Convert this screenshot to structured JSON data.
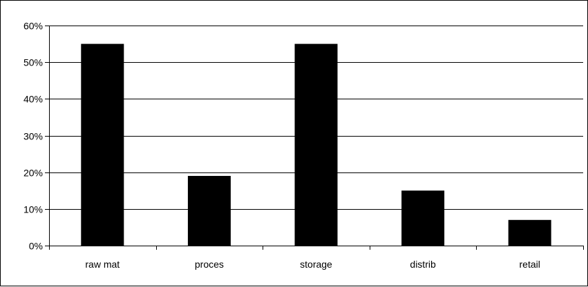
{
  "chart_data": {
    "type": "bar",
    "title": "",
    "xlabel": "",
    "ylabel": "",
    "categories": [
      "raw mat",
      "proces",
      "storage",
      "distrib",
      "retail"
    ],
    "values": [
      0.55,
      0.19,
      0.55,
      0.15,
      0.07
    ],
    "ylim": [
      0,
      0.6
    ],
    "yticks": [
      0,
      0.1,
      0.2,
      0.3,
      0.4,
      0.5,
      0.6
    ],
    "ytick_labels": [
      "0%",
      "10%",
      "20%",
      "30%",
      "40%",
      "50%",
      "60%"
    ],
    "grid": true,
    "legend": "none",
    "colors": {
      "bar": "#000000",
      "grid": "#000000",
      "axis": "#000000",
      "background": "#ffffff"
    }
  }
}
